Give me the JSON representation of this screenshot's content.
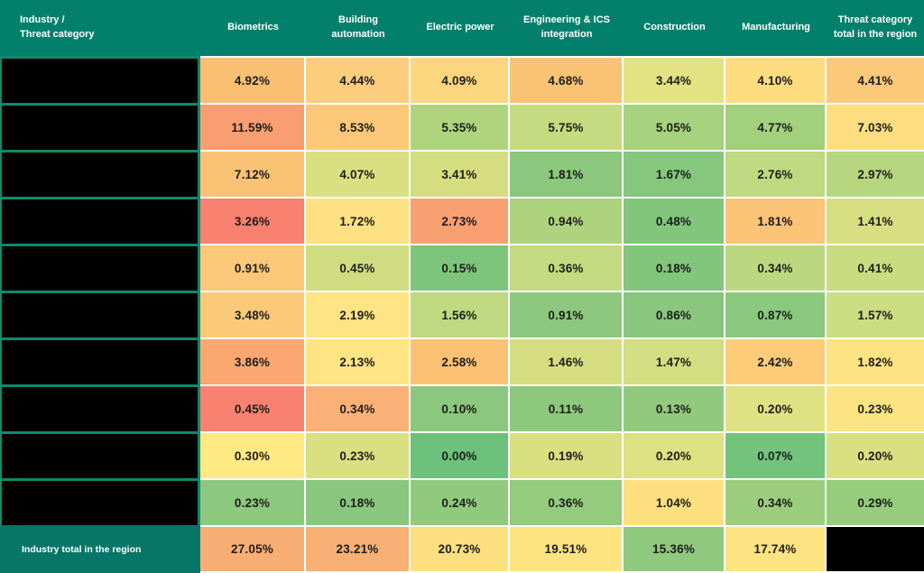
{
  "chart_data": {
    "type": "heatmap",
    "title": "Industry / Threat category",
    "unit": "%",
    "columns": [
      "Biometrics",
      "Building automation",
      "Electric power",
      "Engineering & ICS integration",
      "Construction",
      "Manufacturing",
      "Threat category total in the region"
    ],
    "row_labels_redacted": true,
    "row_count": 10,
    "values": [
      [
        4.92,
        4.44,
        4.09,
        4.68,
        3.44,
        4.1,
        4.41
      ],
      [
        11.59,
        8.53,
        5.35,
        5.75,
        5.05,
        4.77,
        7.03
      ],
      [
        7.12,
        4.07,
        3.41,
        1.81,
        1.67,
        2.76,
        2.97
      ],
      [
        3.26,
        1.72,
        2.73,
        0.94,
        0.48,
        1.81,
        1.41
      ],
      [
        0.91,
        0.45,
        0.15,
        0.36,
        0.18,
        0.34,
        0.41
      ],
      [
        3.48,
        2.19,
        1.56,
        0.91,
        0.86,
        0.87,
        1.57
      ],
      [
        3.86,
        2.13,
        2.58,
        1.46,
        1.47,
        2.42,
        1.82
      ],
      [
        0.45,
        0.34,
        0.1,
        0.11,
        0.13,
        0.2,
        0.23
      ],
      [
        0.3,
        0.23,
        0.0,
        0.19,
        0.2,
        0.07,
        0.2
      ],
      [
        0.23,
        0.18,
        0.24,
        0.36,
        1.04,
        0.34,
        0.29
      ]
    ],
    "industry_total_in_region": [
      27.05,
      23.21,
      20.73,
      19.51,
      15.36,
      17.74
    ],
    "legend_position": "none",
    "grid": false
  },
  "table": {
    "corner_lines": [
      "Industry /",
      "Threat category"
    ],
    "total_row_label": "Industry total in the region",
    "cell_colors": [
      [
        "#F9C073",
        "#FBCD7C",
        "#FCD67E",
        "#FAC274",
        "#E3E383",
        "#FDDC80",
        "#FBC97A"
      ],
      [
        "#F99D73",
        "#FBC87A",
        "#AFD47E",
        "#C6DB80",
        "#A6D17E",
        "#A2D07D",
        "#FDDD80"
      ],
      [
        "#FAC275",
        "#D9E081",
        "#D4DE81",
        "#8BC87D",
        "#85C77D",
        "#BFD980",
        "#B5D67F"
      ],
      [
        "#F9816F",
        "#FEE182",
        "#F9A072",
        "#AED37E",
        "#82C67C",
        "#FBC476",
        "#D6DF81"
      ],
      [
        "#FBC778",
        "#CFDD80",
        "#7EC57C",
        "#C3DA80",
        "#82C67C",
        "#BCD87F",
        "#C9DC80"
      ],
      [
        "#FBCA78",
        "#FEE482",
        "#BED97F",
        "#8BC87D",
        "#88C77D",
        "#8AC87D",
        "#CCDC80"
      ],
      [
        "#FAA870",
        "#FEE482",
        "#FBC275",
        "#D4DE81",
        "#D2DE81",
        "#FCCC79",
        "#FEE382"
      ],
      [
        "#F8826F",
        "#FBB175",
        "#8BC87D",
        "#8DC97D",
        "#92CA7D",
        "#DFE282",
        "#FBE481"
      ],
      [
        "#FEE983",
        "#D9E081",
        "#6CC17D",
        "#D8E081",
        "#DCE181",
        "#74C37C",
        "#D9E081"
      ],
      [
        "#8CC87D",
        "#88C77D",
        "#90CA7D",
        "#94CB7D",
        "#FDDF80",
        "#9CCD7E",
        "#97CC7D"
      ]
    ],
    "total_row_colors": [
      "#F9AE73",
      "#F9B075",
      "#FCE07F",
      "#FDE481",
      "#8FC97D",
      "#FDE381"
    ],
    "bottom_right_redacted": true
  },
  "colors": {
    "header_bg": "#02806B",
    "separator_teal": "#0E8A6D",
    "total_label_bg": "#077668",
    "grid_line": "#FFFFFF",
    "redacted_fill": "#000000",
    "header_text": "#FFFFFF",
    "cell_text": "#1D1D1B"
  }
}
